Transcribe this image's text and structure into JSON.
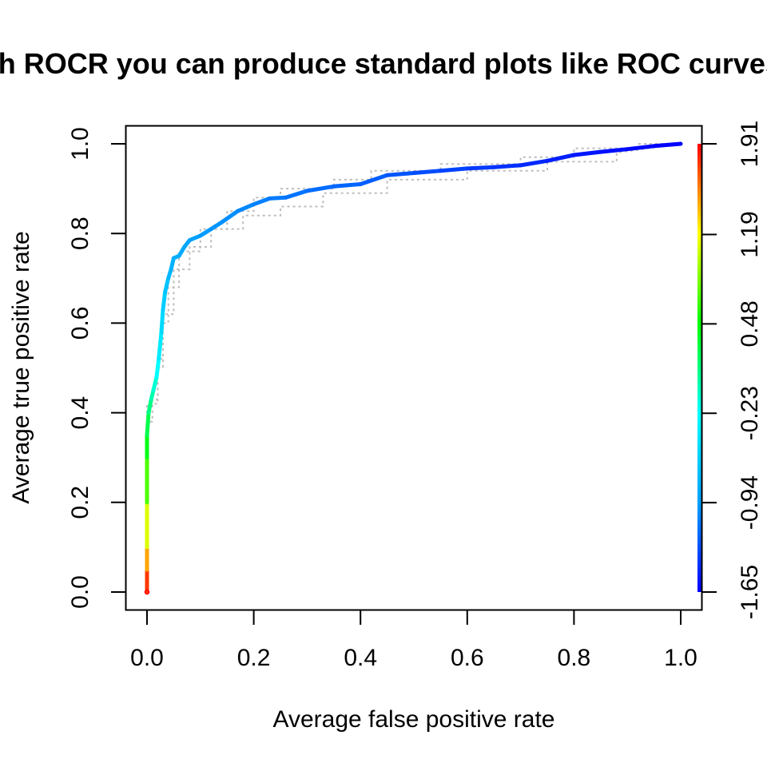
{
  "chart_data": {
    "type": "line",
    "title": "With ROCR you can produce standard plots like ROC curves ...",
    "xlabel": "Average false positive rate",
    "ylabel": "Average true positive rate",
    "xlim": [
      0.0,
      1.0
    ],
    "ylim": [
      0.0,
      1.0
    ],
    "x_ticks": [
      "0.0",
      "0.2",
      "0.4",
      "0.6",
      "0.8",
      "1.0"
    ],
    "y_ticks": [
      "0.0",
      "0.2",
      "0.4",
      "0.6",
      "0.8",
      "1.0"
    ],
    "colorkey": {
      "ticks": [
        "-1.65",
        "-0.94",
        "-0.23",
        "0.48",
        "1.19",
        "1.91"
      ],
      "range": [
        -1.65,
        1.91
      ],
      "colors": [
        "#0000ff",
        "#00a0ff",
        "#00ffff",
        "#00ff00",
        "#ffff00",
        "#ff0000"
      ]
    },
    "series": [
      {
        "style": "colorized average",
        "x": [
          0.0,
          0.0,
          0.0,
          0.0,
          0.0,
          0.0,
          0.003,
          0.008,
          0.012,
          0.018,
          0.022,
          0.027,
          0.03,
          0.034,
          0.04,
          0.045,
          0.05,
          0.06,
          0.07,
          0.08,
          0.1,
          0.12,
          0.14,
          0.17,
          0.2,
          0.23,
          0.26,
          0.3,
          0.35,
          0.4,
          0.45,
          0.5,
          0.55,
          0.6,
          0.65,
          0.7,
          0.75,
          0.8,
          0.85,
          0.9,
          0.95,
          1.0
        ],
        "y": [
          0.0,
          0.05,
          0.1,
          0.2,
          0.3,
          0.35,
          0.4,
          0.43,
          0.45,
          0.48,
          0.52,
          0.58,
          0.63,
          0.67,
          0.7,
          0.72,
          0.745,
          0.75,
          0.77,
          0.785,
          0.795,
          0.81,
          0.825,
          0.85,
          0.865,
          0.878,
          0.88,
          0.895,
          0.905,
          0.91,
          0.93,
          0.935,
          0.94,
          0.945,
          0.948,
          0.952,
          0.962,
          0.975,
          0.982,
          0.988,
          0.995,
          1.0
        ],
        "cutoff": [
          1.91,
          1.6,
          1.3,
          0.9,
          0.5,
          0.35,
          0.2,
          0.05,
          -0.05,
          -0.15,
          -0.3,
          -0.45,
          -0.55,
          -0.65,
          -0.72,
          -0.78,
          -0.82,
          -0.85,
          -0.88,
          -0.91,
          -0.94,
          -0.97,
          -1.0,
          -1.03,
          -1.06,
          -1.09,
          -1.12,
          -1.15,
          -1.18,
          -1.21,
          -1.25,
          -1.29,
          -1.33,
          -1.37,
          -1.41,
          -1.45,
          -1.49,
          -1.53,
          -1.57,
          -1.6,
          -1.63,
          -1.65
        ]
      },
      {
        "style": "dotted gray spread (lower)",
        "x": [
          0.0,
          0.0,
          0.01,
          0.01,
          0.02,
          0.02,
          0.03,
          0.03,
          0.05,
          0.05,
          0.08,
          0.08,
          0.12,
          0.12,
          0.18,
          0.18,
          0.25,
          0.25,
          0.33,
          0.33,
          0.45,
          0.45,
          0.6,
          0.6,
          0.75,
          0.75,
          0.88,
          0.88,
          1.0
        ],
        "y": [
          0.0,
          0.38,
          0.38,
          0.43,
          0.43,
          0.52,
          0.52,
          0.62,
          0.62,
          0.72,
          0.72,
          0.77,
          0.77,
          0.81,
          0.81,
          0.84,
          0.84,
          0.86,
          0.86,
          0.89,
          0.89,
          0.92,
          0.92,
          0.94,
          0.94,
          0.96,
          0.96,
          0.98,
          1.0
        ]
      },
      {
        "style": "dotted gray spread (upper)",
        "x": [
          0.0,
          0.0,
          0.02,
          0.02,
          0.03,
          0.03,
          0.04,
          0.04,
          0.06,
          0.06,
          0.1,
          0.1,
          0.15,
          0.15,
          0.2,
          0.2,
          0.25,
          0.25,
          0.35,
          0.35,
          0.42,
          0.42,
          0.55,
          0.55,
          0.7,
          0.7,
          0.8,
          0.8,
          0.92,
          0.92,
          1.0
        ],
        "y": [
          0.0,
          0.42,
          0.42,
          0.5,
          0.5,
          0.6,
          0.6,
          0.68,
          0.68,
          0.76,
          0.76,
          0.81,
          0.81,
          0.85,
          0.85,
          0.88,
          0.88,
          0.9,
          0.9,
          0.92,
          0.92,
          0.94,
          0.94,
          0.955,
          0.955,
          0.97,
          0.97,
          0.99,
          0.99,
          1.0,
          1.0
        ]
      }
    ]
  }
}
